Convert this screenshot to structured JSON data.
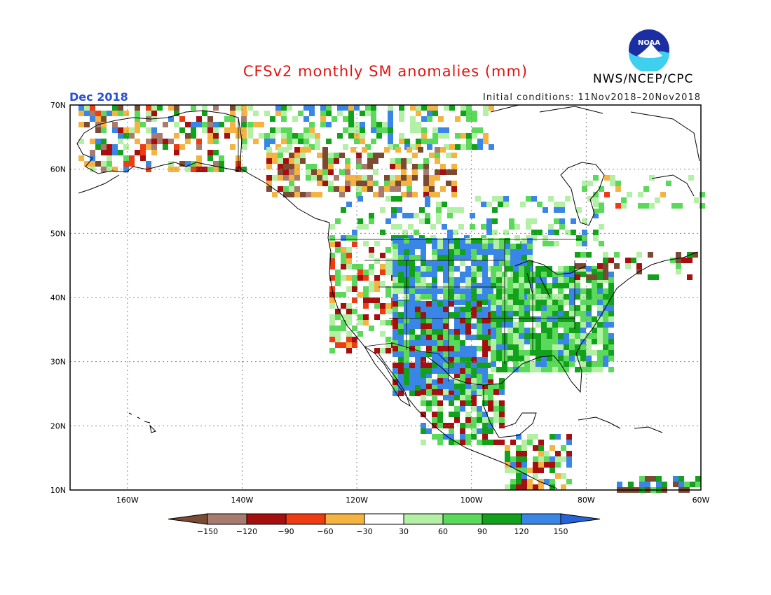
{
  "header": {
    "title": "CFSv2 monthly SM anomalies (mm)",
    "period": "Dec 2018",
    "initial_conditions": "Initial conditions: 11Nov2018–20Nov2018",
    "agency": "NWS/NCEP/CPC",
    "logo_text": "NOAA"
  },
  "map": {
    "lat_labels": [
      "70N",
      "60N",
      "50N",
      "40N",
      "30N",
      "20N",
      "10N"
    ],
    "lon_labels": [
      "160W",
      "140W",
      "120W",
      "100W",
      "80W",
      "60W"
    ],
    "lon_range": [
      -170,
      -60
    ],
    "lat_range": [
      10,
      70
    ]
  },
  "legend": {
    "labels": [
      "−150",
      "−120",
      "−90",
      "−60",
      "−30",
      "30",
      "60",
      "90",
      "120",
      "150"
    ],
    "colors": [
      "#7a4a32",
      "#a77c6f",
      "#a50f0f",
      "#ee3b12",
      "#f5b342",
      "#ffffff",
      "#b3f0a6",
      "#5ad95a",
      "#12a11a",
      "#3a86e6",
      "#2663d8"
    ]
  },
  "colors": {
    "outline": "#000000",
    "grid": "#888888",
    "title": "#e3130f",
    "period": "#2a4fd6"
  }
}
